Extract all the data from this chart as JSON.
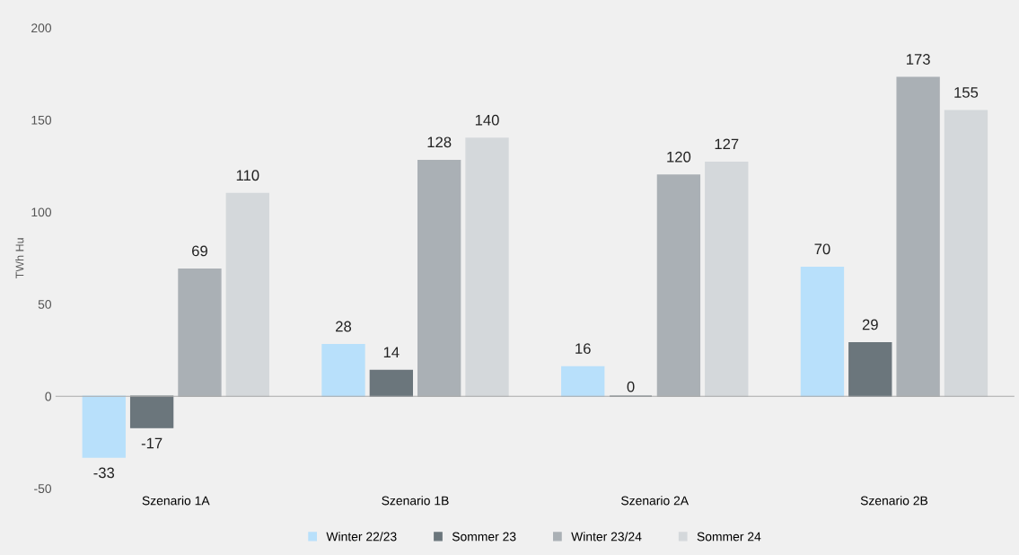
{
  "chart_data": {
    "type": "bar",
    "ylabel": "TWh Hu",
    "categories": [
      "Szenario 1A",
      "Szenario 1B",
      "Szenario 2A",
      "Szenario 2B"
    ],
    "series": [
      {
        "name": "Winter 22/23",
        "color": "#b8e0fb",
        "values": [
          -33,
          28,
          16,
          70
        ]
      },
      {
        "name": "Sommer 23",
        "color": "#6b767c",
        "values": [
          -17,
          14,
          0,
          29
        ]
      },
      {
        "name": "Winter 23/24",
        "color": "#aab0b5",
        "values": [
          69,
          128,
          120,
          173
        ]
      },
      {
        "name": "Sommer 24",
        "color": "#d4d8db",
        "values": [
          110,
          140,
          127,
          155
        ]
      }
    ],
    "ylim": [
      -50,
      200
    ],
    "yticks": [
      -50,
      0,
      50,
      100,
      150,
      200
    ],
    "data_labels": true,
    "legend": "bottom"
  }
}
